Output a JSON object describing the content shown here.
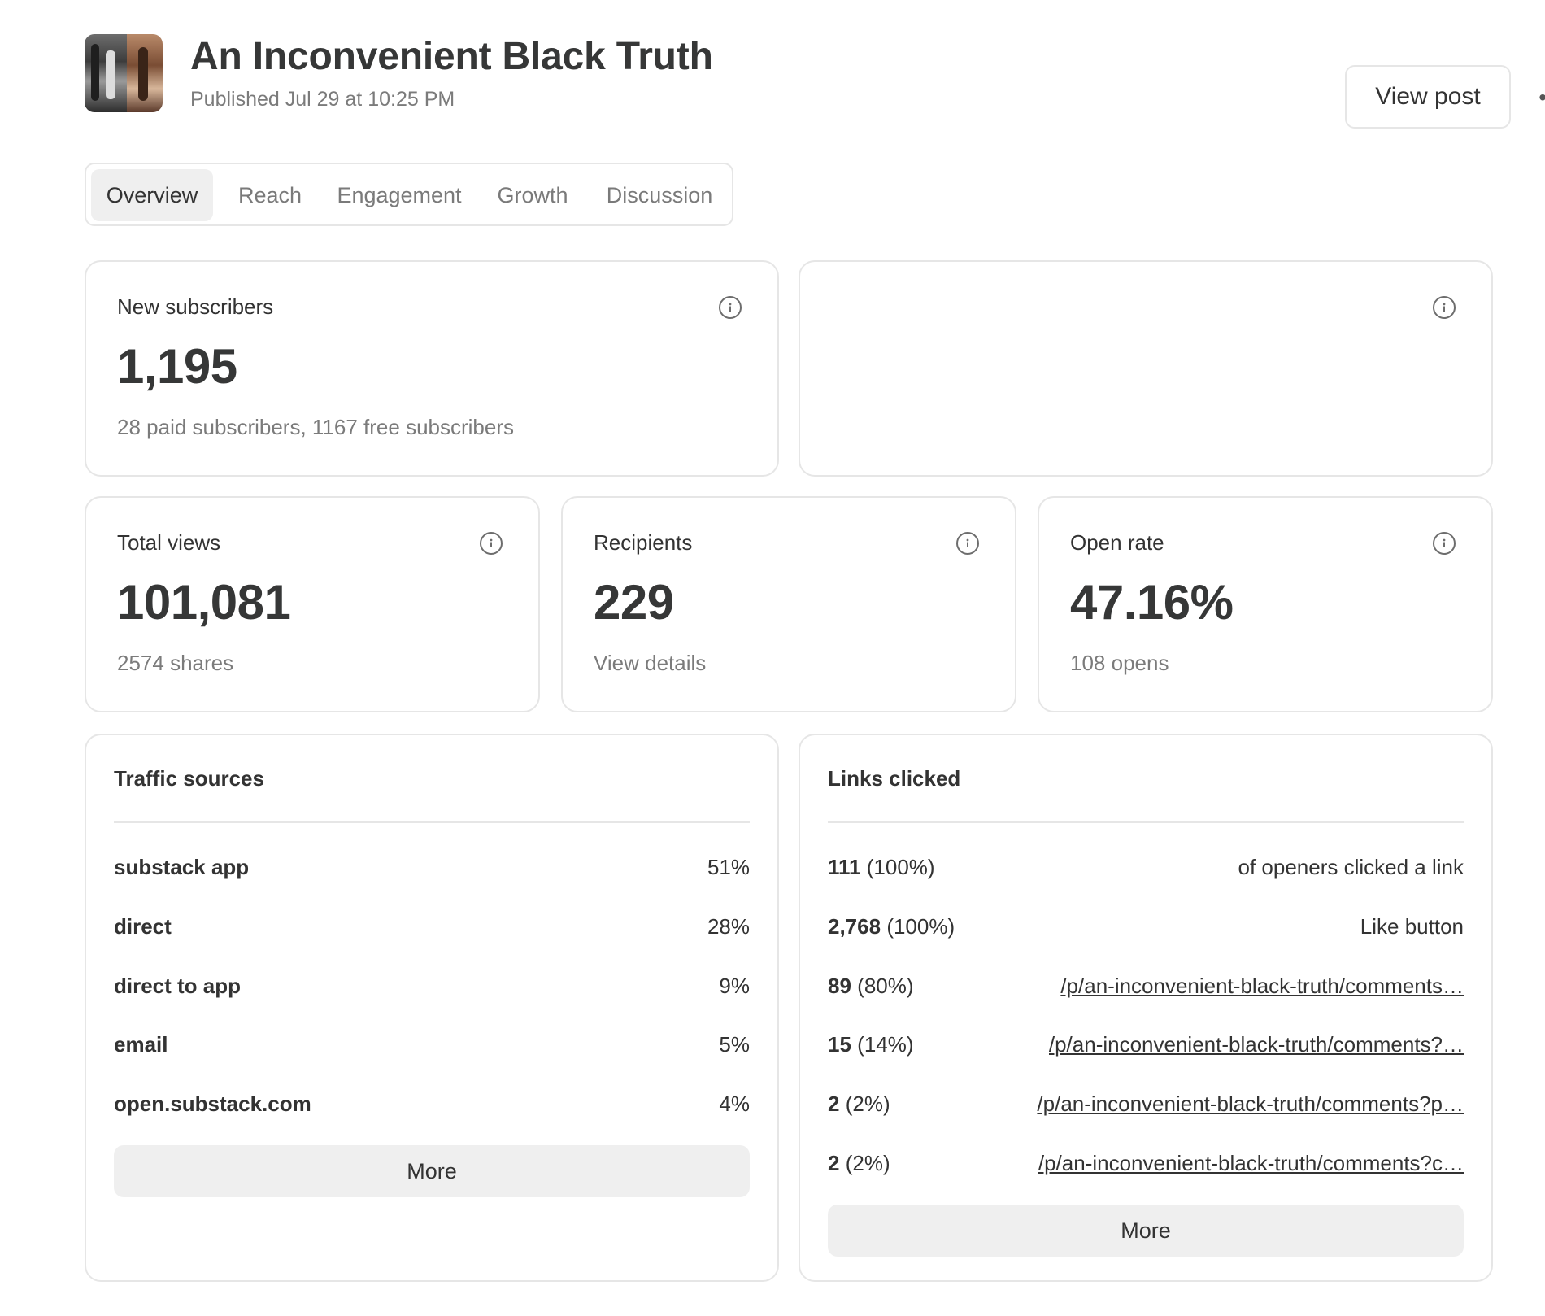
{
  "post": {
    "title": "An Inconvenient Black Truth",
    "published": "Published Jul 29 at 10:25 PM",
    "view_post_label": "View post",
    "more_icon": "more-dots-icon",
    "more_glyph": "•••"
  },
  "tabs": [
    {
      "label": "Overview",
      "active": true
    },
    {
      "label": "Reach",
      "active": false
    },
    {
      "label": "Engagement",
      "active": false
    },
    {
      "label": "Growth",
      "active": false
    },
    {
      "label": "Discussion",
      "active": false
    }
  ],
  "cards": {
    "new_subscribers": {
      "label": "New subscribers",
      "value": "1,195",
      "sub": "28 paid subscribers, 1167 free subscribers"
    },
    "total_views": {
      "label": "Total views",
      "value": "101,081",
      "sub": "2574 shares"
    },
    "recipients": {
      "label": "Recipients",
      "value": "229",
      "sub": "View details"
    },
    "open_rate": {
      "label": "Open rate",
      "value": "47.16%",
      "sub": "108 opens"
    }
  },
  "traffic_sources": {
    "title": "Traffic sources",
    "rows": [
      {
        "name": "substack app",
        "pct": "51%"
      },
      {
        "name": "direct",
        "pct": "28%"
      },
      {
        "name": "direct to app",
        "pct": "9%"
      },
      {
        "name": "email",
        "pct": "5%"
      },
      {
        "name": "open.substack.com",
        "pct": "4%"
      }
    ],
    "more_label": "More"
  },
  "links_clicked": {
    "title": "Links clicked",
    "rows": [
      {
        "count": "111",
        "pct": "(100%)",
        "text": "of openers clicked a link",
        "is_link": false
      },
      {
        "count": "2,768",
        "pct": "(100%)",
        "text": "Like button",
        "is_link": false
      },
      {
        "count": "89",
        "pct": "(80%)",
        "text": "/p/an-inconvenient-black-truth/comments…",
        "is_link": true
      },
      {
        "count": "15",
        "pct": "(14%)",
        "text": "/p/an-inconvenient-black-truth/comments?…",
        "is_link": true
      },
      {
        "count": "2",
        "pct": "(2%)",
        "text": "/p/an-inconvenient-black-truth/comments?p…",
        "is_link": true
      },
      {
        "count": "2",
        "pct": "(2%)",
        "text": "/p/an-inconvenient-black-truth/comments?c…",
        "is_link": true
      }
    ],
    "more_label": "More"
  },
  "colors": {
    "border": "#e6e6e6",
    "title_text": "#363737",
    "muted_text": "#7b7b7b",
    "button_bg": "#efefef"
  }
}
